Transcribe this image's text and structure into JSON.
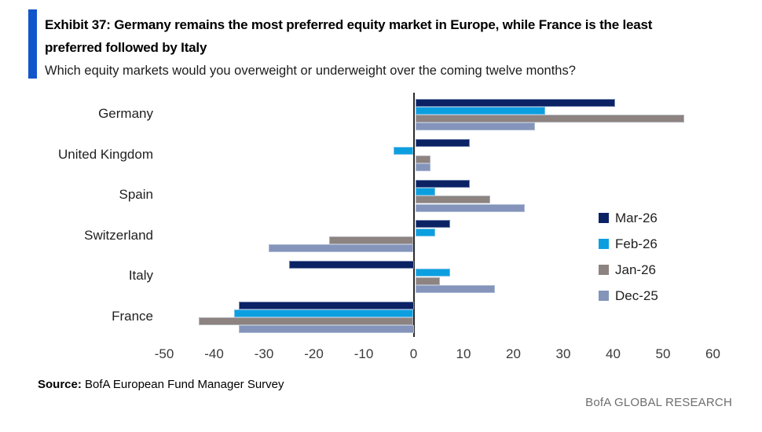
{
  "header": {
    "title_line1": "Exhibit 37: Germany remains the most preferred equity market in Europe, while France is the least",
    "title_line2": "preferred followed by Italy",
    "subtitle": "Which equity markets would you overweight or underweight over the coming twelve months?",
    "accent_color": "#1155cb"
  },
  "chart_data": {
    "type": "bar",
    "orientation": "horizontal",
    "categories": [
      "Germany",
      "United Kingdom",
      "Spain",
      "Switzerland",
      "Italy",
      "France"
    ],
    "series": [
      {
        "name": "Mar-26",
        "color": "#0b2265",
        "values": [
          40,
          11,
          11,
          7,
          -25,
          -35
        ]
      },
      {
        "name": "Feb-26",
        "color": "#0c9fe0",
        "values": [
          26,
          -4,
          4,
          4,
          7,
          -36
        ]
      },
      {
        "name": "Jan-26",
        "color": "#8d8380",
        "values": [
          54,
          3,
          15,
          -17,
          5,
          -43
        ]
      },
      {
        "name": "Dec-25",
        "color": "#8494ba",
        "values": [
          24,
          3,
          22,
          -29,
          16,
          -35
        ]
      }
    ],
    "xlim": [
      -50,
      60
    ],
    "xticks": [
      -50,
      -40,
      -30,
      -20,
      -10,
      0,
      10,
      20,
      30,
      40,
      50,
      60
    ],
    "legend_position": "right-inside",
    "grid": false
  },
  "footer": {
    "source_label": "Source:",
    "source_text": " BofA European Fund Manager Survey",
    "brand": "BofA GLOBAL RESEARCH"
  }
}
